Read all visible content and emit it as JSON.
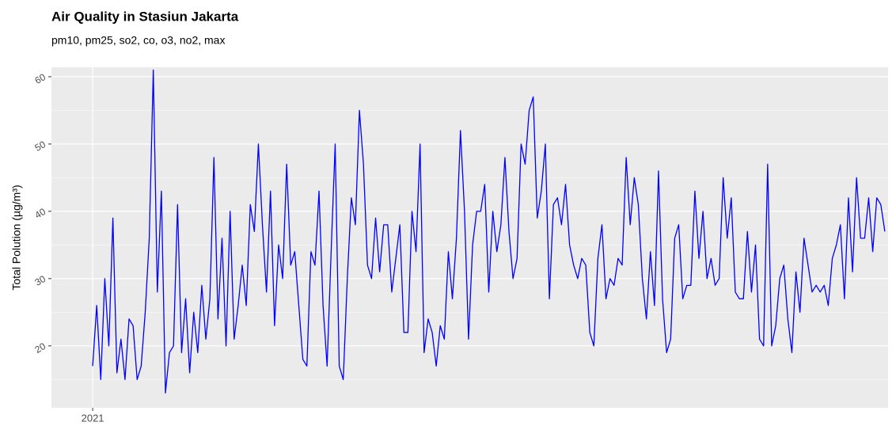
{
  "chart_data": {
    "type": "line",
    "title": "Air Quality in Stasiun Jakarta",
    "subtitle": "pm10, pm25, so2, co, o3, no2, max",
    "y_label": "Total Polution (µg/m³)",
    "series": [
      {
        "color": "#0000ff",
        "values": [
          17,
          26,
          15,
          30,
          20,
          39,
          16,
          21,
          15,
          24,
          23,
          15,
          17,
          25,
          36,
          61,
          28,
          43,
          13,
          19,
          20,
          41,
          19,
          27,
          16,
          25,
          19,
          29,
          21,
          27,
          48,
          24,
          36,
          20,
          40,
          21,
          26,
          32,
          26,
          41,
          37,
          50,
          38,
          28,
          43,
          23,
          35,
          30,
          47,
          32,
          34,
          26,
          18,
          17,
          34,
          32,
          43,
          26,
          17,
          34,
          50,
          17,
          15,
          30,
          42,
          38,
          55,
          47,
          32,
          30,
          39,
          31,
          38,
          38,
          28,
          33,
          38,
          22,
          22,
          40,
          34,
          50,
          19,
          24,
          22,
          17,
          23,
          21,
          34,
          27,
          36,
          52,
          40,
          21,
          35,
          40,
          40,
          44,
          28,
          40,
          34,
          38,
          48,
          37,
          30,
          33,
          50,
          47,
          55,
          57,
          39,
          43,
          50,
          27,
          41,
          42,
          38,
          44,
          35,
          32,
          30,
          33,
          32,
          22,
          20,
          33,
          38,
          27,
          30,
          29,
          33,
          32,
          48,
          38,
          45,
          41,
          30,
          24,
          34,
          26,
          46,
          27,
          19,
          21,
          36,
          38,
          27,
          29,
          29,
          43,
          33,
          40,
          30,
          33,
          29,
          30,
          45,
          36,
          42,
          28,
          27,
          27,
          37,
          28,
          35,
          21,
          20,
          47,
          20,
          23,
          30,
          32,
          24,
          19,
          31,
          25,
          36,
          32,
          28,
          29,
          28,
          29,
          26,
          33,
          35,
          38,
          27,
          42,
          31,
          45,
          36,
          36,
          42,
          34,
          42,
          41,
          37
        ]
      }
    ],
    "xlim": [
      -10.2,
      196.8
    ],
    "xticks": [
      {
        "value": 0,
        "label": "2021"
      }
    ],
    "ylim": [
      10.8,
      61.4
    ],
    "yticks": [
      20,
      30,
      40,
      50,
      60
    ],
    "y_minor_ticks": [
      15,
      25,
      35,
      45,
      55
    ],
    "grid": true
  }
}
